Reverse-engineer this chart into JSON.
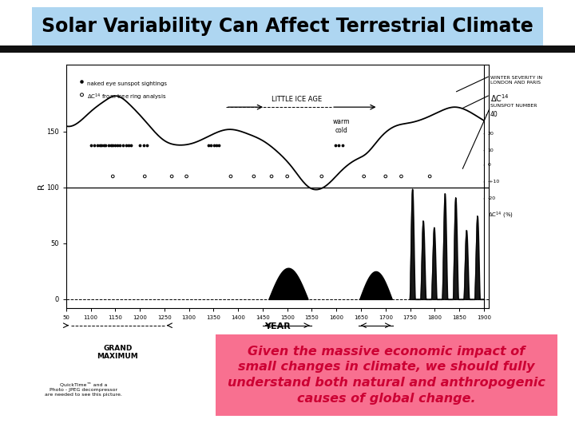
{
  "title": "Solar Variability Can Affect Terrestrial Climate",
  "title_bg": "#aed6f1",
  "title_fontsize": 17,
  "separator_color": "#111111",
  "bg_color": "#ffffff",
  "pink_box_color": "#f87090",
  "pink_text": "Given the massive economic impact of\nsmall changes in climate, we should fully\nunderstand both natural and anthropogenic\ncauses of global change.",
  "pink_text_color": "#cc0033",
  "pink_text_fontsize": 11.5,
  "small_text": "QuickTime™ and a\nPhoto - JPEG decompressor\nare needed to see this picture.",
  "small_text_fontsize": 4.5,
  "year_label": "YEAR"
}
